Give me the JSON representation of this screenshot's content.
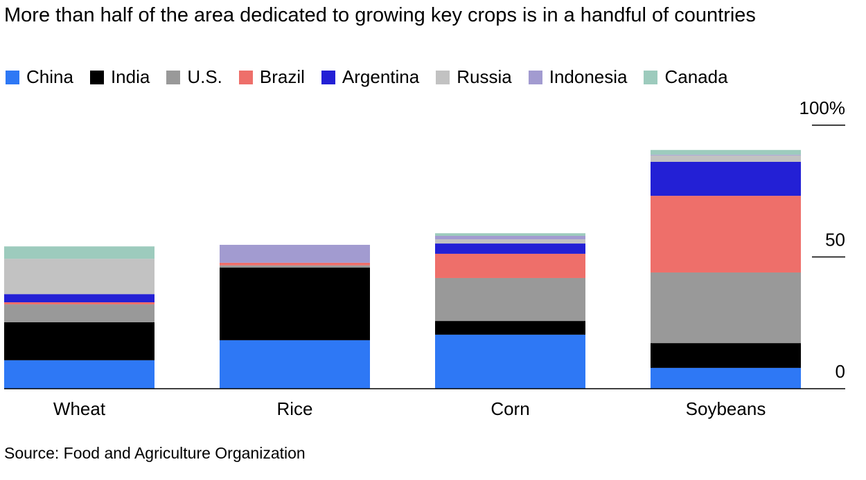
{
  "chart_data": {
    "type": "stacked-bar",
    "title": "More than half of the area dedicated to growing key crops is in a handful of countries",
    "source": "Source: Food and Agriculture Organization",
    "categories": [
      "Wheat",
      "Rice",
      "Corn",
      "Soybeans"
    ],
    "series": [
      {
        "name": "China",
        "color": "#2e78f5",
        "values": [
          10.8,
          18.4,
          20.5,
          7.9
        ]
      },
      {
        "name": "India",
        "color": "#000000",
        "values": [
          14.4,
          27.6,
          5.2,
          9.4
        ]
      },
      {
        "name": "U.S.",
        "color": "#999999",
        "values": [
          6.8,
          0.8,
          16.3,
          26.8
        ]
      },
      {
        "name": "Brazil",
        "color": "#ee6f6a",
        "values": [
          0.8,
          1.0,
          9.2,
          29.1
        ]
      },
      {
        "name": "Argentina",
        "color": "#2320d5",
        "values": [
          3.1,
          0,
          3.9,
          12.9
        ]
      },
      {
        "name": "Russia",
        "color": "#c2c2c2",
        "values": [
          13.4,
          0,
          1.6,
          2.4
        ]
      },
      {
        "name": "Indonesia",
        "color": "#a29bd0",
        "values": [
          0,
          6.8,
          1.3,
          0.3
        ]
      },
      {
        "name": "Canada",
        "color": "#9dcbbd",
        "values": [
          4.7,
          0,
          1.0,
          1.8
        ]
      }
    ],
    "ylim": [
      0,
      100
    ],
    "yticks": [
      0,
      50,
      {
        "value": 100,
        "label": "100%"
      }
    ]
  }
}
